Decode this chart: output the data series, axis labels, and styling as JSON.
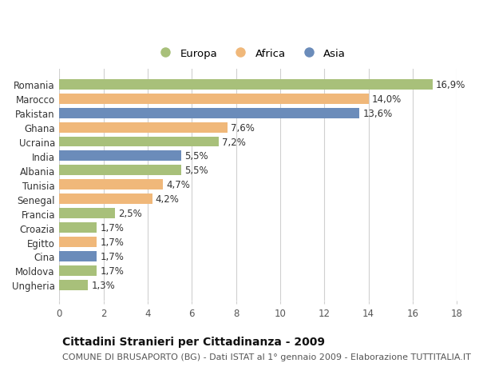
{
  "title": "Cittadini Stranieri per Cittadinanza - 2009",
  "subtitle": "COMUNE DI BRUSAPORTO (BG) - Dati ISTAT al 1° gennaio 2009 - Elaborazione TUTTITALIA.IT",
  "categories": [
    "Romania",
    "Marocco",
    "Pakistan",
    "Ghana",
    "Ucraina",
    "India",
    "Albania",
    "Tunisia",
    "Senegal",
    "Francia",
    "Croazia",
    "Egitto",
    "Cina",
    "Moldova",
    "Ungheria"
  ],
  "values": [
    16.9,
    14.0,
    13.6,
    7.6,
    7.2,
    5.5,
    5.5,
    4.7,
    4.2,
    2.5,
    1.7,
    1.7,
    1.7,
    1.7,
    1.3
  ],
  "labels": [
    "16,9%",
    "14,0%",
    "13,6%",
    "7,6%",
    "7,2%",
    "5,5%",
    "5,5%",
    "4,7%",
    "4,2%",
    "2,5%",
    "1,7%",
    "1,7%",
    "1,7%",
    "1,7%",
    "1,3%"
  ],
  "continents": [
    "Europa",
    "Africa",
    "Asia",
    "Africa",
    "Europa",
    "Asia",
    "Europa",
    "Africa",
    "Africa",
    "Europa",
    "Europa",
    "Africa",
    "Asia",
    "Europa",
    "Europa"
  ],
  "colors": {
    "Europa": "#a8c07a",
    "Africa": "#f0b87a",
    "Asia": "#6b8cba"
  },
  "legend_labels": [
    "Europa",
    "Africa",
    "Asia"
  ],
  "xlim": [
    0,
    18
  ],
  "xticks": [
    0,
    2,
    4,
    6,
    8,
    10,
    12,
    14,
    16,
    18
  ],
  "background_color": "#ffffff",
  "plot_bg_color": "#ffffff",
  "grid_color": "#d0d0d0",
  "bar_height": 0.72,
  "title_fontsize": 10,
  "subtitle_fontsize": 8,
  "label_fontsize": 8.5,
  "tick_fontsize": 8.5,
  "legend_fontsize": 9.5
}
